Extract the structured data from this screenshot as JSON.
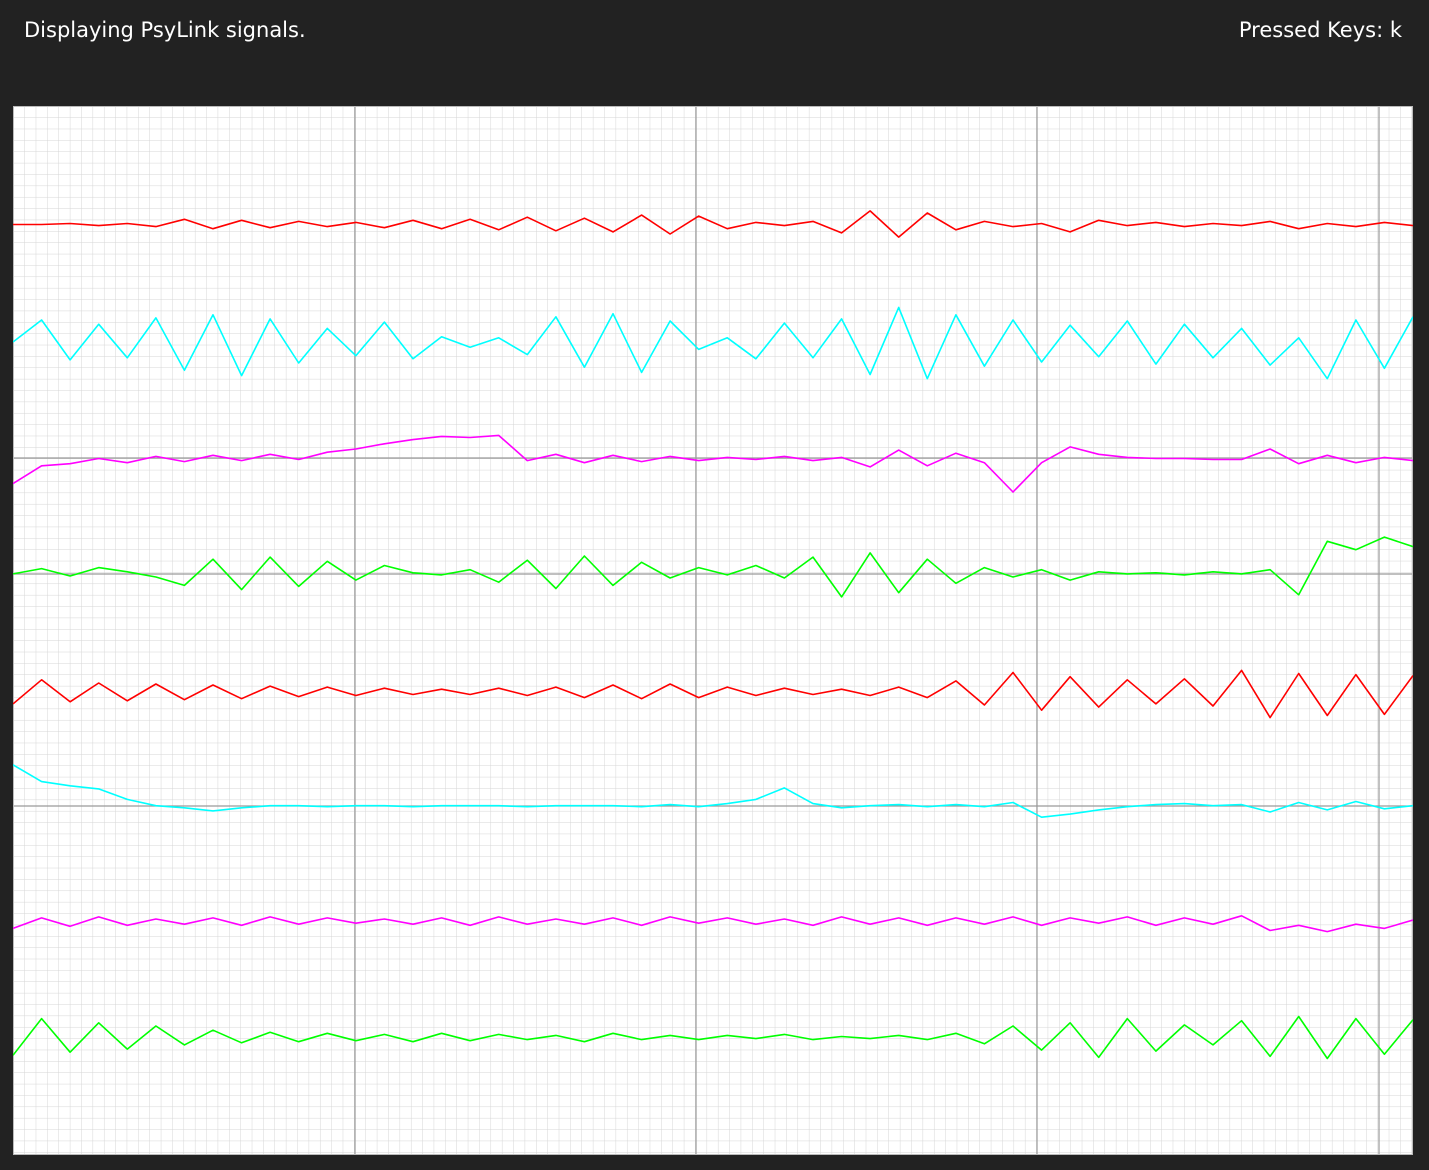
{
  "header": {
    "status": "Displaying PsyLink signals.",
    "pressed_keys": "Pressed Keys: k"
  },
  "chart_data": {
    "type": "line",
    "ylim": [
      0,
      100
    ],
    "series": [
      {
        "color": "#ff0000",
        "values": [
          88.7,
          88.7,
          88.8,
          88.6,
          88.8,
          88.5,
          89.2,
          88.3,
          89.1,
          88.4,
          89.0,
          88.5,
          88.9,
          88.4,
          89.1,
          88.3,
          89.2,
          88.2,
          89.4,
          88.1,
          89.3,
          88.0,
          89.6,
          87.8,
          89.5,
          88.3,
          88.9,
          88.6,
          89.0,
          87.9,
          90.0,
          87.5,
          89.8,
          88.2,
          89.0,
          88.5,
          88.8,
          88.0,
          89.1,
          88.6,
          88.9,
          88.5,
          88.8,
          88.6,
          89.0,
          88.3,
          88.8,
          88.5,
          88.9,
          88.6
        ]
      },
      {
        "color": "#00ffff",
        "values": [
          77.5,
          79.6,
          75.8,
          79.2,
          76.0,
          79.8,
          74.8,
          80.1,
          74.3,
          79.7,
          75.5,
          78.8,
          76.2,
          79.4,
          75.9,
          78.0,
          77.0,
          77.9,
          76.3,
          79.9,
          75.1,
          80.2,
          74.6,
          79.5,
          76.8,
          77.9,
          75.9,
          79.3,
          76.0,
          79.7,
          74.4,
          80.8,
          74.0,
          80.1,
          75.2,
          79.6,
          75.6,
          79.1,
          76.1,
          79.5,
          75.4,
          79.2,
          76.0,
          78.8,
          75.3,
          77.9,
          74.0,
          79.6,
          75.0,
          79.9
        ]
      },
      {
        "color": "#ff00ff",
        "values": [
          64.0,
          65.7,
          65.9,
          66.4,
          66.0,
          66.6,
          66.1,
          66.7,
          66.2,
          66.8,
          66.3,
          67.0,
          67.3,
          67.8,
          68.2,
          68.5,
          68.4,
          68.6,
          66.2,
          66.8,
          66.0,
          66.7,
          66.1,
          66.6,
          66.2,
          66.5,
          66.3,
          66.6,
          66.2,
          66.5,
          65.6,
          67.2,
          65.7,
          66.9,
          66.0,
          63.2,
          66.0,
          67.5,
          66.8,
          66.5,
          66.4,
          66.4,
          66.3,
          66.3,
          67.3,
          65.9,
          66.7,
          66.0,
          66.5,
          66.2
        ]
      },
      {
        "color": "#00ff00",
        "values": [
          55.4,
          55.9,
          55.2,
          56.0,
          55.6,
          55.1,
          54.3,
          56.8,
          53.9,
          57.0,
          54.2,
          56.6,
          54.8,
          56.2,
          55.5,
          55.3,
          55.8,
          54.6,
          56.7,
          54.0,
          57.1,
          54.3,
          56.5,
          55.0,
          56.0,
          55.3,
          56.2,
          55.0,
          57.0,
          53.2,
          57.4,
          53.6,
          56.8,
          54.5,
          56.0,
          55.1,
          55.8,
          54.8,
          55.6,
          55.4,
          55.5,
          55.3,
          55.6,
          55.4,
          55.8,
          53.4,
          58.5,
          57.7,
          58.9,
          58.0
        ]
      },
      {
        "color": "#ff0000",
        "values": [
          43.0,
          45.3,
          43.2,
          45.0,
          43.3,
          44.9,
          43.4,
          44.8,
          43.5,
          44.7,
          43.7,
          44.6,
          43.8,
          44.5,
          43.9,
          44.4,
          43.9,
          44.5,
          43.8,
          44.6,
          43.6,
          44.8,
          43.5,
          44.9,
          43.6,
          44.6,
          43.8,
          44.5,
          43.9,
          44.4,
          43.8,
          44.6,
          43.6,
          45.2,
          42.9,
          46.0,
          42.4,
          45.6,
          42.7,
          45.3,
          43.0,
          45.4,
          42.8,
          46.2,
          41.7,
          45.9,
          41.9,
          45.8,
          42.0,
          45.7
        ]
      },
      {
        "color": "#00ffff",
        "values": [
          37.2,
          35.6,
          35.2,
          34.9,
          33.9,
          33.3,
          33.1,
          32.8,
          33.1,
          33.3,
          33.3,
          33.2,
          33.3,
          33.3,
          33.2,
          33.3,
          33.3,
          33.3,
          33.2,
          33.3,
          33.3,
          33.3,
          33.2,
          33.4,
          33.2,
          33.5,
          33.9,
          35.0,
          33.5,
          33.1,
          33.3,
          33.4,
          33.2,
          33.4,
          33.2,
          33.6,
          32.2,
          32.5,
          32.9,
          33.2,
          33.4,
          33.5,
          33.3,
          33.4,
          32.7,
          33.6,
          32.9,
          33.7,
          33.0,
          33.3
        ]
      },
      {
        "color": "#ff00ff",
        "values": [
          21.6,
          22.6,
          21.8,
          22.7,
          21.9,
          22.5,
          22.0,
          22.6,
          21.9,
          22.7,
          22.0,
          22.6,
          22.1,
          22.5,
          22.0,
          22.6,
          21.9,
          22.7,
          22.0,
          22.5,
          22.0,
          22.6,
          21.9,
          22.7,
          22.1,
          22.6,
          22.0,
          22.5,
          21.9,
          22.7,
          22.0,
          22.6,
          21.9,
          22.6,
          22.0,
          22.7,
          21.9,
          22.6,
          22.1,
          22.7,
          21.9,
          22.6,
          22.0,
          22.8,
          21.4,
          21.9,
          21.3,
          22.0,
          21.6,
          22.4
        ]
      },
      {
        "color": "#00ff00",
        "values": [
          9.5,
          13.0,
          9.8,
          12.6,
          10.1,
          12.3,
          10.5,
          11.9,
          10.7,
          11.7,
          10.8,
          11.6,
          10.9,
          11.5,
          10.8,
          11.6,
          10.9,
          11.5,
          11.0,
          11.4,
          10.8,
          11.6,
          11.0,
          11.4,
          11.0,
          11.4,
          11.1,
          11.5,
          11.0,
          11.3,
          11.1,
          11.4,
          11.0,
          11.6,
          10.6,
          12.3,
          10.0,
          12.6,
          9.3,
          13.0,
          9.9,
          12.4,
          10.5,
          12.8,
          9.4,
          13.2,
          9.2,
          13.0,
          9.6,
          12.9
        ]
      }
    ]
  }
}
